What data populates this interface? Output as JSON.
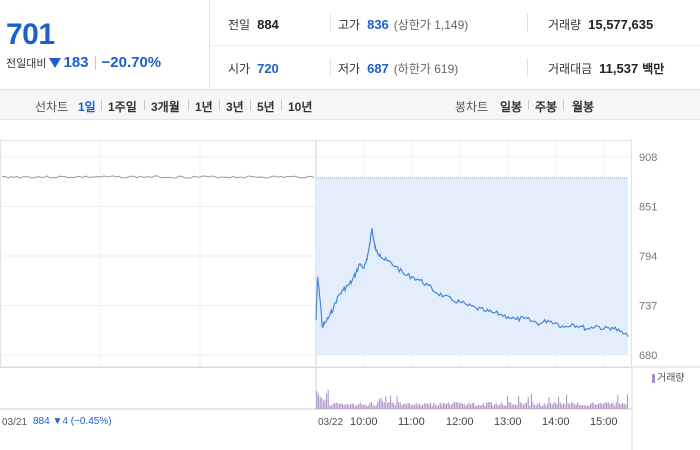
{
  "summary": {
    "price": "701",
    "change_label": "전일대비",
    "change_amount": "183",
    "change_rate": "−20.70%",
    "stats": {
      "prev_close": {
        "label": "전일",
        "value": "884"
      },
      "high": {
        "label": "고가",
        "value": "836",
        "sub": "(상한가 1,149)"
      },
      "volume": {
        "label": "거래량",
        "value": "15,577,635"
      },
      "open": {
        "label": "시가",
        "value": "720"
      },
      "low": {
        "label": "저가",
        "value": "687",
        "sub": "(하한가 619)"
      },
      "trade_value": {
        "label": "거래대금",
        "value": "11,537",
        "unit": "백만"
      }
    }
  },
  "toolbar": {
    "line_chart_label": "선차트",
    "periods": [
      "1일",
      "1주일",
      "3개월",
      "1년",
      "3년",
      "5년",
      "10년"
    ],
    "active_period": "1일",
    "candle_chart_label": "봉차트",
    "candle_periods": [
      "일봉",
      "주봉",
      "월봉"
    ]
  },
  "colors": {
    "accent_blue": "#1d5fd0",
    "line_today": "#4a86d8",
    "fill_today": "#e3edfb",
    "line_prev": "#9a9a9a",
    "volume_bar": "#a78cc4"
  },
  "chart_data": {
    "type": "line",
    "y_ticks": [
      "908",
      "851",
      "794",
      "737",
      "680"
    ],
    "ylim": [
      680,
      908
    ],
    "x_ticks": [
      "03/21",
      "03/22",
      "10:00",
      "11:00",
      "12:00",
      "13:00",
      "14:00",
      "15:00"
    ],
    "reference_line": 884,
    "prev_day": {
      "date": "03/21",
      "approx_level": 885
    },
    "series": [
      {
        "x": [
          "09:00",
          "09:02",
          "09:05",
          "09:08",
          "09:12",
          "09:17",
          "09:22",
          "09:28",
          "09:34",
          "09:40",
          "09:45",
          "09:50",
          "09:55",
          "10:00",
          "10:04",
          "10:07",
          "10:10",
          "10:12",
          "10:15",
          "10:20",
          "10:25",
          "10:30",
          "10:40",
          "10:50",
          "11:00",
          "11:10",
          "11:20",
          "11:30",
          "11:40",
          "11:50",
          "12:00",
          "12:10",
          "12:20",
          "12:30",
          "12:40",
          "12:50",
          "13:00",
          "13:10",
          "13:20",
          "13:30",
          "13:40",
          "13:50",
          "14:00",
          "14:10",
          "14:20",
          "14:30",
          "14:40",
          "14:50",
          "15:00",
          "15:10",
          "15:20",
          "15:30"
        ],
        "values": [
          720,
          770,
          745,
          712,
          718,
          725,
          735,
          748,
          755,
          760,
          765,
          775,
          785,
          780,
          790,
          808,
          826,
          812,
          800,
          796,
          790,
          788,
          782,
          773,
          770,
          766,
          760,
          752,
          748,
          743,
          741,
          737,
          734,
          731,
          729,
          727,
          724,
          721,
          722,
          719,
          716,
          720,
          717,
          712,
          716,
          713,
          710,
          714,
          710,
          712,
          707,
          701
        ]
      }
    ],
    "volume": {
      "legend": "거래량",
      "footer": "884 ▼4 (−0.45%)"
    }
  }
}
